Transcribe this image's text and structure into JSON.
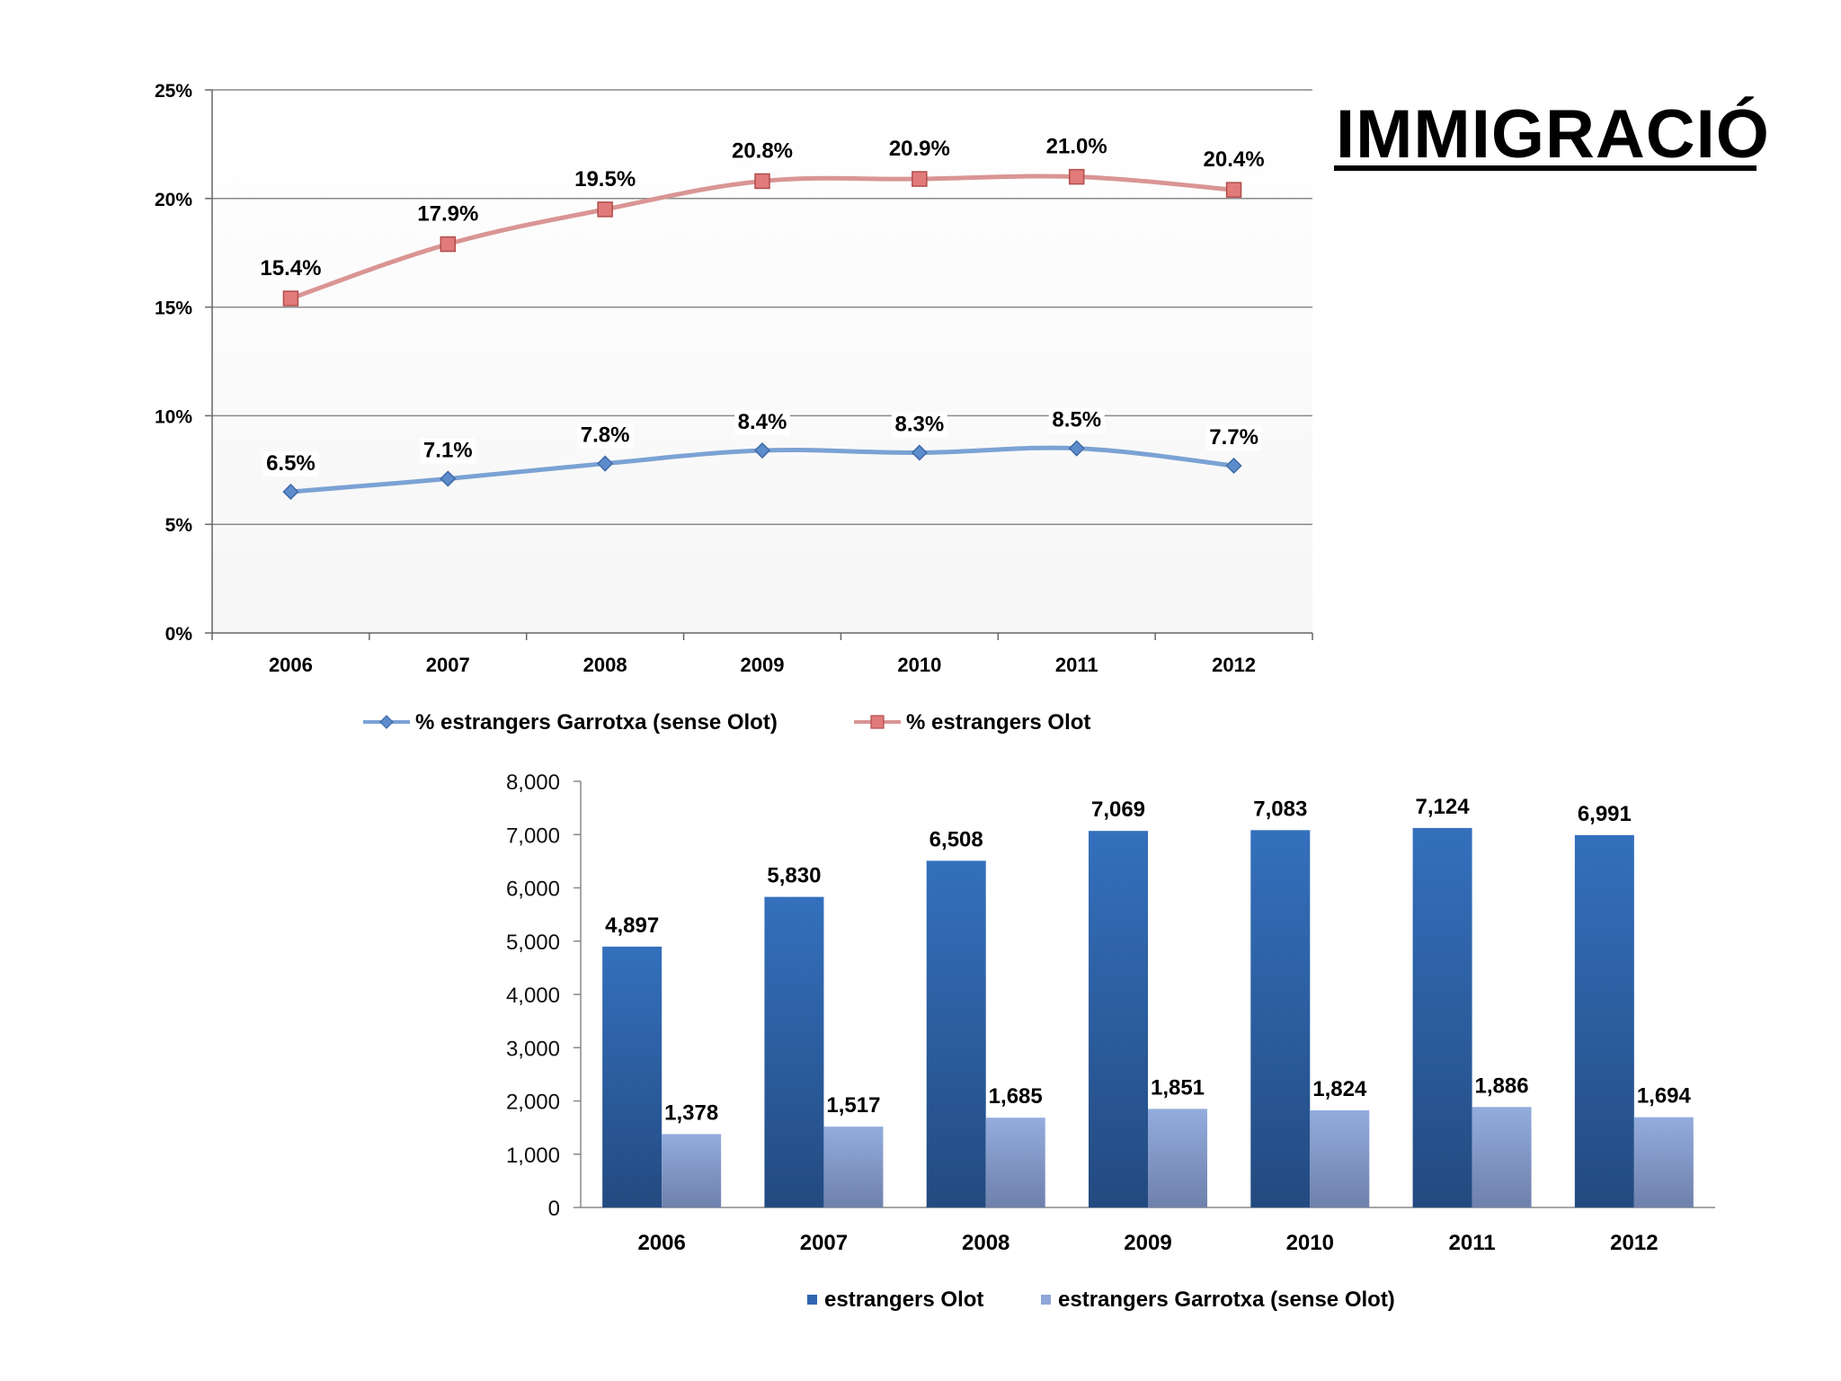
{
  "page_title": "IMMIGRACIÓ",
  "chart_data": [
    {
      "type": "line",
      "categories": [
        "2006",
        "2007",
        "2008",
        "2009",
        "2010",
        "2011",
        "2012"
      ],
      "series": [
        {
          "name": "% estrangers Garrotxa (sense Olot)",
          "values": [
            6.5,
            7.1,
            7.8,
            8.4,
            8.3,
            8.5,
            7.7
          ],
          "labels": [
            "6.5%",
            "7.1%",
            "7.8%",
            "8.4%",
            "8.3%",
            "8.5%",
            "7.7%"
          ],
          "color": "#7ba2d4",
          "marker": "diamond"
        },
        {
          "name": "% estrangers Olot",
          "values": [
            15.4,
            17.9,
            19.5,
            20.8,
            20.9,
            21.0,
            20.4
          ],
          "labels": [
            "15.4%",
            "17.9%",
            "19.5%",
            "20.8%",
            "20.9%",
            "21.0%",
            "20.4%"
          ],
          "color": "#d99594",
          "marker": "square"
        }
      ],
      "ylim": [
        0,
        25
      ],
      "yticks": [
        "0%",
        "5%",
        "10%",
        "15%",
        "20%",
        "25%"
      ],
      "grid": true,
      "legend": "bottom"
    },
    {
      "type": "bar",
      "categories": [
        "2006",
        "2007",
        "2008",
        "2009",
        "2010",
        "2011",
        "2012"
      ],
      "series": [
        {
          "name": "estrangers Olot",
          "values": [
            4897,
            5830,
            6508,
            7069,
            7083,
            7124,
            6991
          ],
          "labels": [
            "4,897",
            "5,830",
            "6,508",
            "7,069",
            "7,083",
            "7,124",
            "6,991"
          ],
          "color": "#2f66b0"
        },
        {
          "name": "estrangers Garrotxa (sense Olot)",
          "values": [
            1378,
            1517,
            1685,
            1851,
            1824,
            1886,
            1694
          ],
          "labels": [
            "1,378",
            "1,517",
            "1,685",
            "1,851",
            "1,824",
            "1,886",
            "1,694"
          ],
          "color": "#8ea7d8"
        }
      ],
      "ylim": [
        0,
        8000
      ],
      "yticks": [
        "0",
        "1,000",
        "2,000",
        "3,000",
        "4,000",
        "5,000",
        "6,000",
        "7,000",
        "8,000"
      ],
      "grid": false,
      "legend": "bottom"
    }
  ]
}
